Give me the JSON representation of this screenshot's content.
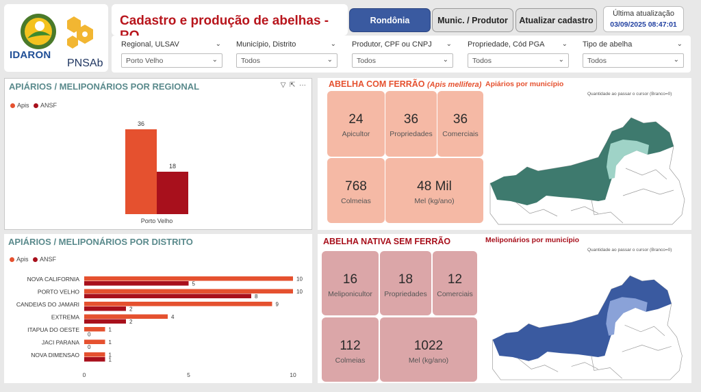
{
  "header": {
    "logo1": "IDARON",
    "logo2": "PNSAb",
    "title": "Cadastro e produção de abelhas - RO",
    "tabs": [
      {
        "label": "Rondônia"
      },
      {
        "label": "Munic. / Produtor"
      },
      {
        "label": "Atualizar cadastro"
      }
    ],
    "update_label": "Última atualização",
    "update_value": "03/09/2025 08:47:01"
  },
  "filters": [
    {
      "label": "Regional, ULSAV",
      "value": "Porto Velho"
    },
    {
      "label": "Município, Distrito",
      "value": "Todos"
    },
    {
      "label": "Produtor, CPF ou CNPJ",
      "value": "Todos"
    },
    {
      "label": "Propriedade, Cód PGA",
      "value": "Todos"
    },
    {
      "label": "Tipo de abelha",
      "value": "Todos"
    }
  ],
  "regional": {
    "title": "APIÁRIOS / MELIPONÁRIOS POR REGIONAL",
    "legend": [
      "Apis",
      "ANSF"
    ]
  },
  "distrito": {
    "title": "APIÁRIOS / MELIPONÁRIOS POR DISTRITO",
    "legend": [
      "Apis",
      "ANSF"
    ]
  },
  "apis": {
    "title": "ABELHA COM FERRÃO",
    "title_italic": "(Apis mellifera)",
    "map_title": "Apiários por município",
    "hint": "Quantidade ao passar o cursor (Branco=0)",
    "kpis": [
      {
        "value": "24",
        "label": "Apicultor"
      },
      {
        "value": "36",
        "label": "Propriedades"
      },
      {
        "value": "36",
        "label": "Comerciais"
      },
      {
        "value": "768",
        "label": "Colmeias"
      },
      {
        "value": "48 Mil",
        "label": "Mel (kg/ano)"
      }
    ]
  },
  "ansf": {
    "title": "ABELHA NATIVA SEM FERRÃO",
    "map_title": "Meliponários por município",
    "hint": "Quantidade ao passar o cursor (Branco=0)",
    "kpis": [
      {
        "value": "16",
        "label": "Meliponicultor"
      },
      {
        "value": "18",
        "label": "Propriedades"
      },
      {
        "value": "12",
        "label": "Comerciais"
      },
      {
        "value": "112",
        "label": "Colmeias"
      },
      {
        "value": "1022",
        "label": "Mel (kg/ano)"
      }
    ]
  },
  "colors": {
    "apis": "#e5512f",
    "ansf": "#a8101c",
    "teal": "#3e7a6e",
    "teal_light": "#9fd3c7",
    "navy": "#3a5aa0",
    "navy_light": "#8aa2d8",
    "kpi_apis": "#f5b9a5",
    "kpi_ansf": "#dba6a8"
  },
  "chart_data": [
    {
      "type": "bar",
      "title": "APIÁRIOS / MELIPONÁRIOS POR REGIONAL",
      "categories": [
        "Porto Velho"
      ],
      "series": [
        {
          "name": "Apis",
          "values": [
            36
          ]
        },
        {
          "name": "ANSF",
          "values": [
            18
          ]
        }
      ],
      "ylim": [
        0,
        36
      ]
    },
    {
      "type": "bar",
      "orientation": "horizontal",
      "title": "APIÁRIOS / MELIPONÁRIOS POR DISTRITO",
      "categories": [
        "NOVA CALIFORNIA",
        "PORTO VELHO",
        "CANDEIAS DO JAMARI",
        "EXTREMA",
        "ITAPUA DO OESTE",
        "JACI PARANA",
        "NOVA DIMENSAO"
      ],
      "series": [
        {
          "name": "Apis",
          "values": [
            10,
            10,
            9,
            4,
            1,
            1,
            1
          ]
        },
        {
          "name": "ANSF",
          "values": [
            5,
            8,
            2,
            2,
            0,
            0,
            1
          ]
        }
      ],
      "xlim": [
        0,
        10
      ],
      "xticks": [
        0,
        5,
        10
      ]
    }
  ]
}
